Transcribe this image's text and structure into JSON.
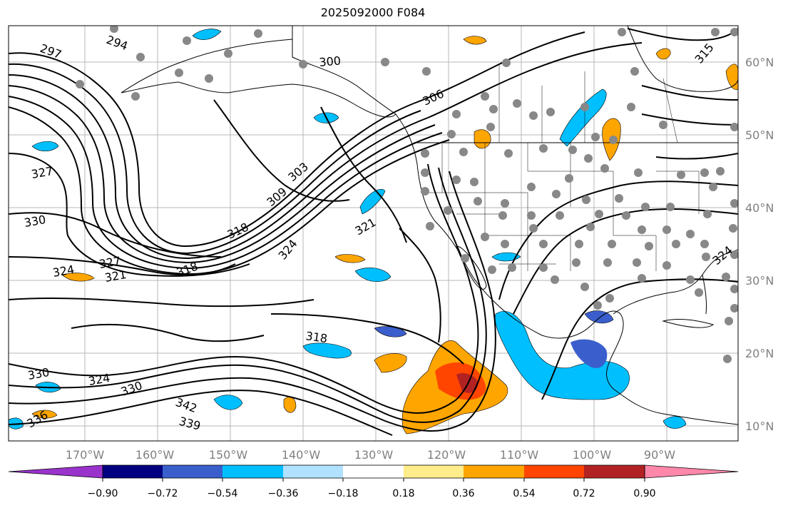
{
  "title": "2025092000 F084",
  "map": {
    "lat_labels": [
      "60°N",
      "50°N",
      "40°N",
      "30°N",
      "20°N",
      "10°N"
    ],
    "lon_labels": [
      "170°W",
      "160°W",
      "150°W",
      "140°W",
      "130°W",
      "120°W",
      "110°W",
      "100°W",
      "90°W"
    ],
    "contour_labels": [
      {
        "text": "297"
      },
      {
        "text": "294"
      },
      {
        "text": "300"
      },
      {
        "text": "306"
      },
      {
        "text": "315"
      },
      {
        "text": "327"
      },
      {
        "text": "303"
      },
      {
        "text": "309"
      },
      {
        "text": "330"
      },
      {
        "text": "318"
      },
      {
        "text": "321"
      },
      {
        "text": "324"
      },
      {
        "text": "327"
      },
      {
        "text": "324"
      },
      {
        "text": "321"
      },
      {
        "text": "318"
      },
      {
        "text": "318"
      },
      {
        "text": "330"
      },
      {
        "text": "324"
      },
      {
        "text": "330"
      },
      {
        "text": "342"
      },
      {
        "text": "339"
      },
      {
        "text": "336"
      },
      {
        "text": "324"
      }
    ]
  },
  "colorbar": {
    "labels": [
      "−0.90",
      "−0.72",
      "−0.54",
      "−0.36",
      "−0.18",
      "0.18",
      "0.36",
      "0.54",
      "0.72",
      "0.90"
    ],
    "colors": [
      "#9933cc",
      "#000080",
      "#3a5fcd",
      "#00bfff",
      "#b0e2ff",
      "#ffffff",
      "#ffec8b",
      "#ffa500",
      "#ff4500",
      "#b22222",
      "#ff88aa"
    ]
  }
}
